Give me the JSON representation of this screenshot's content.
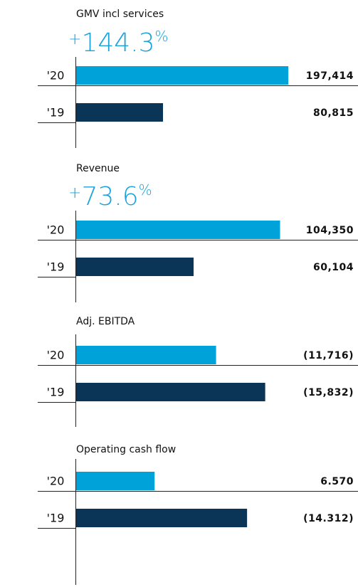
{
  "chart_data": [
    {
      "type": "bar",
      "title": "GMV incl services",
      "annotation": {
        "prefix": "+",
        "text": "144.3",
        "suffix": "%"
      },
      "categories": [
        "'20",
        "'19"
      ],
      "values": [
        197414,
        80815
      ],
      "value_labels": [
        "197,414",
        "80,815"
      ],
      "colors": [
        "#00a3d9",
        "#0b3556"
      ],
      "xlim": [
        0,
        200000
      ]
    },
    {
      "type": "bar",
      "title": "Revenue",
      "annotation": {
        "prefix": "+",
        "text": "73.6",
        "suffix": "%"
      },
      "categories": [
        "'20",
        "'19"
      ],
      "values": [
        104350,
        60104
      ],
      "value_labels": [
        "104,350",
        "60,104"
      ],
      "colors": [
        "#00a3d9",
        "#0b3556"
      ],
      "xlim": [
        0,
        110000
      ]
    },
    {
      "type": "bar",
      "title": "Adj. EBITDA",
      "categories": [
        "'20",
        "'19"
      ],
      "values": [
        -11716,
        -15832
      ],
      "value_labels": [
        "(11,716)",
        "(15,832)"
      ],
      "colors": [
        "#00a3d9",
        "#0b3556"
      ],
      "xlim": [
        0,
        18000
      ]
    },
    {
      "type": "bar",
      "title": "Operating cash flow",
      "categories": [
        "'20",
        "'19"
      ],
      "values": [
        6570,
        -14312
      ],
      "value_labels": [
        "6.570",
        "(14.312)"
      ],
      "colors": [
        "#00a3d9",
        "#0b3556"
      ],
      "xlim": [
        0,
        18000
      ]
    }
  ]
}
